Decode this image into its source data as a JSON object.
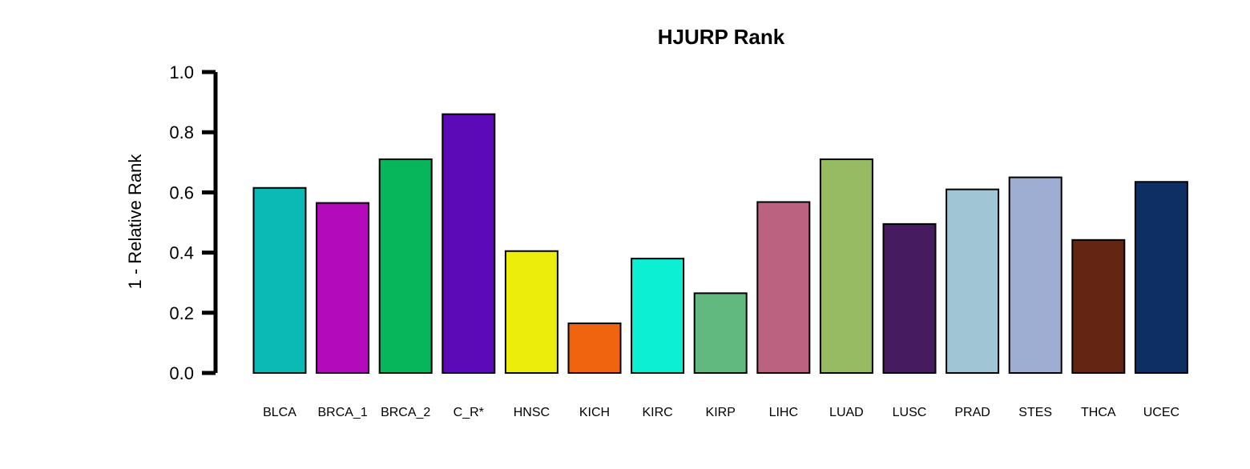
{
  "chart_data": {
    "type": "bar",
    "title": "HJURP Rank",
    "xlabel": "",
    "ylabel": "1 - Relative Rank",
    "ylim": [
      0,
      1
    ],
    "yticks": [
      "0.0",
      "0.2",
      "0.4",
      "0.6",
      "0.8",
      "1.0"
    ],
    "categories": [
      "BLCA",
      "BRCA_1",
      "BRCA_2",
      "C_R*",
      "HNSC",
      "KICH",
      "KIRC",
      "KIRP",
      "LIHC",
      "LUAD",
      "LUSC",
      "PRAD",
      "STES",
      "THCA",
      "UCEC"
    ],
    "values": [
      0.615,
      0.565,
      0.71,
      0.86,
      0.405,
      0.165,
      0.38,
      0.265,
      0.568,
      0.71,
      0.495,
      0.61,
      0.65,
      0.442,
      0.635
    ],
    "colors": [
      "#0bbab5",
      "#b30bbb",
      "#07b65a",
      "#5c0ab8",
      "#eded0c",
      "#f06410",
      "#0cefd3",
      "#62b980",
      "#bb6280",
      "#97bb62",
      "#461b60",
      "#a0c5d5",
      "#9eaed2",
      "#642512",
      "#0d2f64"
    ],
    "grid": false,
    "legend": "none"
  }
}
